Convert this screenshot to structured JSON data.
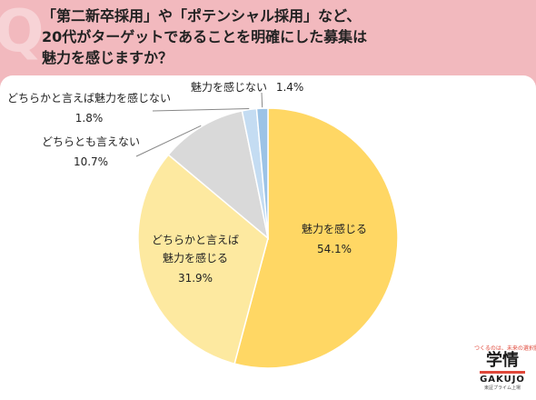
{
  "header": {
    "title_lines": [
      "「第二新卒採用」や「ポテンシャル採用」など、",
      "20代がターゲットであることを明確にした募集は",
      "魅力を感じますか？"
    ]
  },
  "logo": {
    "tagline": "つくるのは、未来の選択肢",
    "kanji": "学情",
    "brand": "GAKUJO",
    "sub": "東証プライム上場"
  },
  "colors": {
    "background": "#f2b9be",
    "slice_1": "#ffd764",
    "slice_2": "#fde9a0",
    "slice_3": "#d9d9d9",
    "slice_4": "#c4dcf2",
    "slice_5": "#9cc3e6"
  },
  "chart_data": {
    "type": "pie",
    "title": "「第二新卒採用」や「ポテンシャル採用」など、20代がターゲットであることを明確にした募集は魅力を感じますか？",
    "slices": [
      {
        "label": "魅力を感じる",
        "value": 54.1,
        "value_label": "54.1%"
      },
      {
        "label": "どちらかと言えば魅力を感じる",
        "value": 31.9,
        "value_label": "31.9%"
      },
      {
        "label": "どちらとも言えない",
        "value": 10.7,
        "value_label": "10.7%"
      },
      {
        "label": "どちらかと言えば魅力を感じない",
        "value": 1.8,
        "value_label": "1.8%"
      },
      {
        "label": "魅力を感じない",
        "value": 1.4,
        "value_label": "1.4%"
      }
    ]
  }
}
